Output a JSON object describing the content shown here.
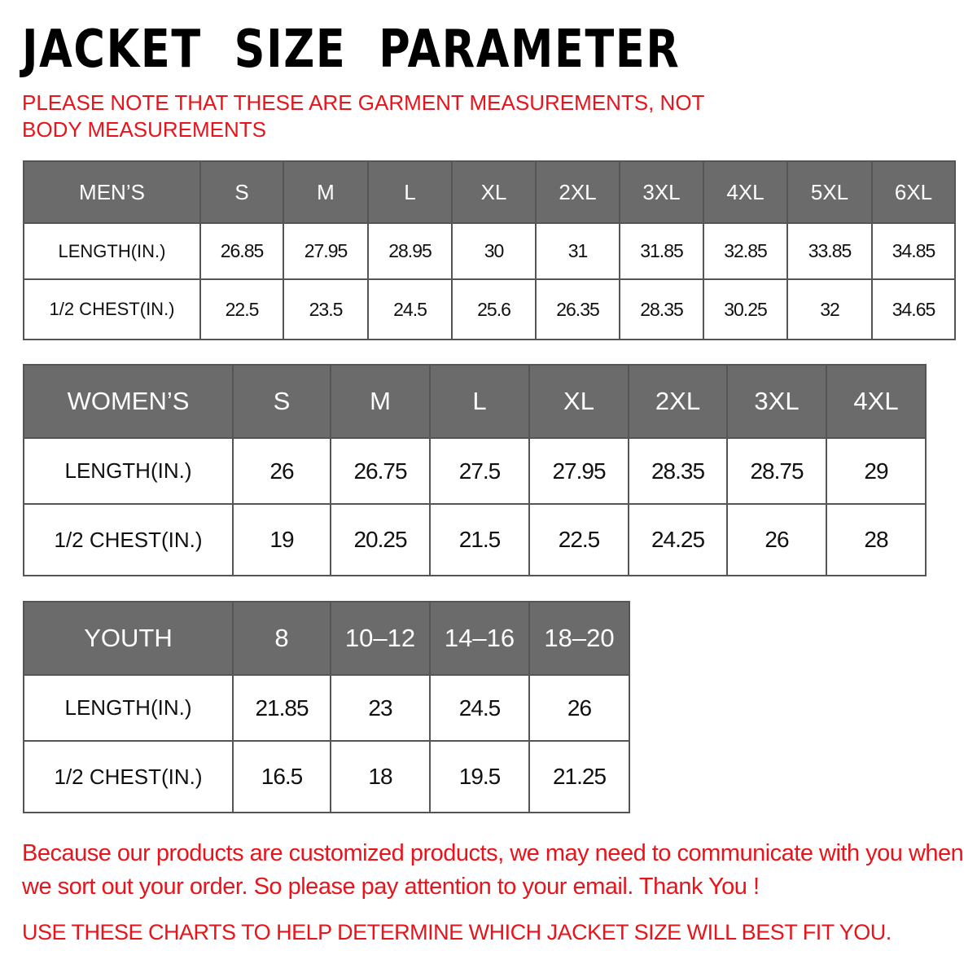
{
  "title": "JACKET  SIZE  PARAMETER",
  "note": "PLEASE NOTE THAT THESE ARE GARMENT MEASUREMENTS, NOT BODY MEASUREMENTS",
  "colors": {
    "header_bg": "#6b6b6b",
    "accent_red": "#e8141b"
  },
  "mens": {
    "header": [
      "MEN’S",
      "S",
      "M",
      "L",
      "XL",
      "2XL",
      "3XL",
      "4XL",
      "5XL",
      "6XL"
    ],
    "rows": [
      [
        "LENGTH(IN.)",
        "26.85",
        "27.95",
        "28.95",
        "30",
        "31",
        "31.85",
        "32.85",
        "33.85",
        "34.85"
      ],
      [
        "1/2 CHEST(IN.)",
        "22.5",
        "23.5",
        "24.5",
        "25.6",
        "26.35",
        "28.35",
        "30.25",
        "32",
        "34.65"
      ]
    ]
  },
  "womens": {
    "header": [
      "WOMEN’S",
      "S",
      "M",
      "L",
      "XL",
      "2XL",
      "3XL",
      "4XL"
    ],
    "rows": [
      [
        "LENGTH(IN.)",
        "26",
        "26.75",
        "27.5",
        "27.95",
        "28.35",
        "28.75",
        "29"
      ],
      [
        "1/2 CHEST(IN.)",
        "19",
        "20.25",
        "21.5",
        "22.5",
        "24.25",
        "26",
        "28"
      ]
    ]
  },
  "youth": {
    "header": [
      "YOUTH",
      "8",
      "10–12",
      "14–16",
      "18–20"
    ],
    "rows": [
      [
        "LENGTH(IN.)",
        "21.85",
        "23",
        "24.5",
        "26"
      ],
      [
        "1/2 CHEST(IN.)",
        "16.5",
        "18",
        "19.5",
        "21.25"
      ]
    ]
  },
  "message": "Because our products are customized products, we may need to communicate with you when we sort out your order. So please pay attention to your email. Thank You !",
  "footer": "USE THESE CHARTS TO HELP DETERMINE WHICH JACKET SIZE WILL BEST FIT YOU."
}
